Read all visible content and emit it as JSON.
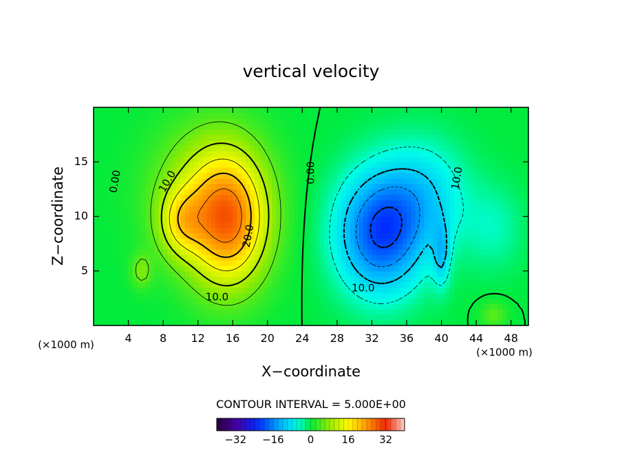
{
  "chart_data": {
    "type": "heatmap",
    "title": "vertical velocity",
    "xlabel": "X−coordinate",
    "ylabel": "Z−coordinate",
    "x_unit_left": "(×1000 m)",
    "x_unit_right": "(×1000 m)",
    "xlim": [
      0,
      50
    ],
    "ylim": [
      0,
      20
    ],
    "x_ticks": [
      4,
      8,
      12,
      16,
      20,
      24,
      28,
      32,
      36,
      40,
      44,
      48
    ],
    "y_ticks": [
      5,
      10,
      15
    ],
    "contour_interval_label": "CONTOUR INTERVAL = 5.000E+00",
    "contour_interval": 5,
    "colorbar": {
      "min": -40,
      "max": 40,
      "ticks": [
        -32,
        -16,
        0,
        16,
        32
      ]
    },
    "contour_labels": [
      {
        "text": "0.00",
        "x": 2.5,
        "y": 13.2,
        "rotate": -80
      },
      {
        "text": "10.0",
        "x": 8.5,
        "y": 13.2,
        "rotate": -60
      },
      {
        "text": "20.0",
        "x": 17.8,
        "y": 8.2,
        "rotate": -80
      },
      {
        "text": "10.0",
        "x": 14.2,
        "y": 2.6,
        "rotate": 0
      },
      {
        "text": "0.00",
        "x": 25.0,
        "y": 14.0,
        "rotate": -90
      },
      {
        "text": "10.0",
        "x": 31.0,
        "y": 3.4,
        "rotate": 0
      },
      {
        "text": "10.0",
        "x": 41.8,
        "y": 13.5,
        "rotate": -80
      }
    ],
    "cells": [
      {
        "cx": 15.5,
        "cy": 9.5,
        "sx": 4.5,
        "sy": 6.0,
        "amp": 22
      },
      {
        "cx": 10.0,
        "cy": 9.5,
        "sx": 2.5,
        "sy": 3.0,
        "amp": 10
      },
      {
        "cx": 13.0,
        "cy": 12.0,
        "sx": 6.5,
        "sy": 6.5,
        "amp": 9
      },
      {
        "cx": 5.5,
        "cy": 5.0,
        "sx": 1.2,
        "sy": 1.6,
        "amp": 6
      },
      {
        "cx": 33.0,
        "cy": 8.5,
        "sx": 5.0,
        "sy": 5.5,
        "amp": -20
      },
      {
        "cx": 38.0,
        "cy": 12.0,
        "sx": 5.0,
        "sy": 5.0,
        "amp": -8
      },
      {
        "cx": 40.0,
        "cy": 6.5,
        "sx": 1.0,
        "sy": 3.0,
        "amp": -8
      },
      {
        "cx": 46.0,
        "cy": 9.0,
        "sx": 3.5,
        "sy": 4.0,
        "amp": -4
      },
      {
        "cx": 46.0,
        "cy": 1.0,
        "sx": 1.5,
        "sy": 1.2,
        "amp": 5
      }
    ],
    "grid": false
  }
}
